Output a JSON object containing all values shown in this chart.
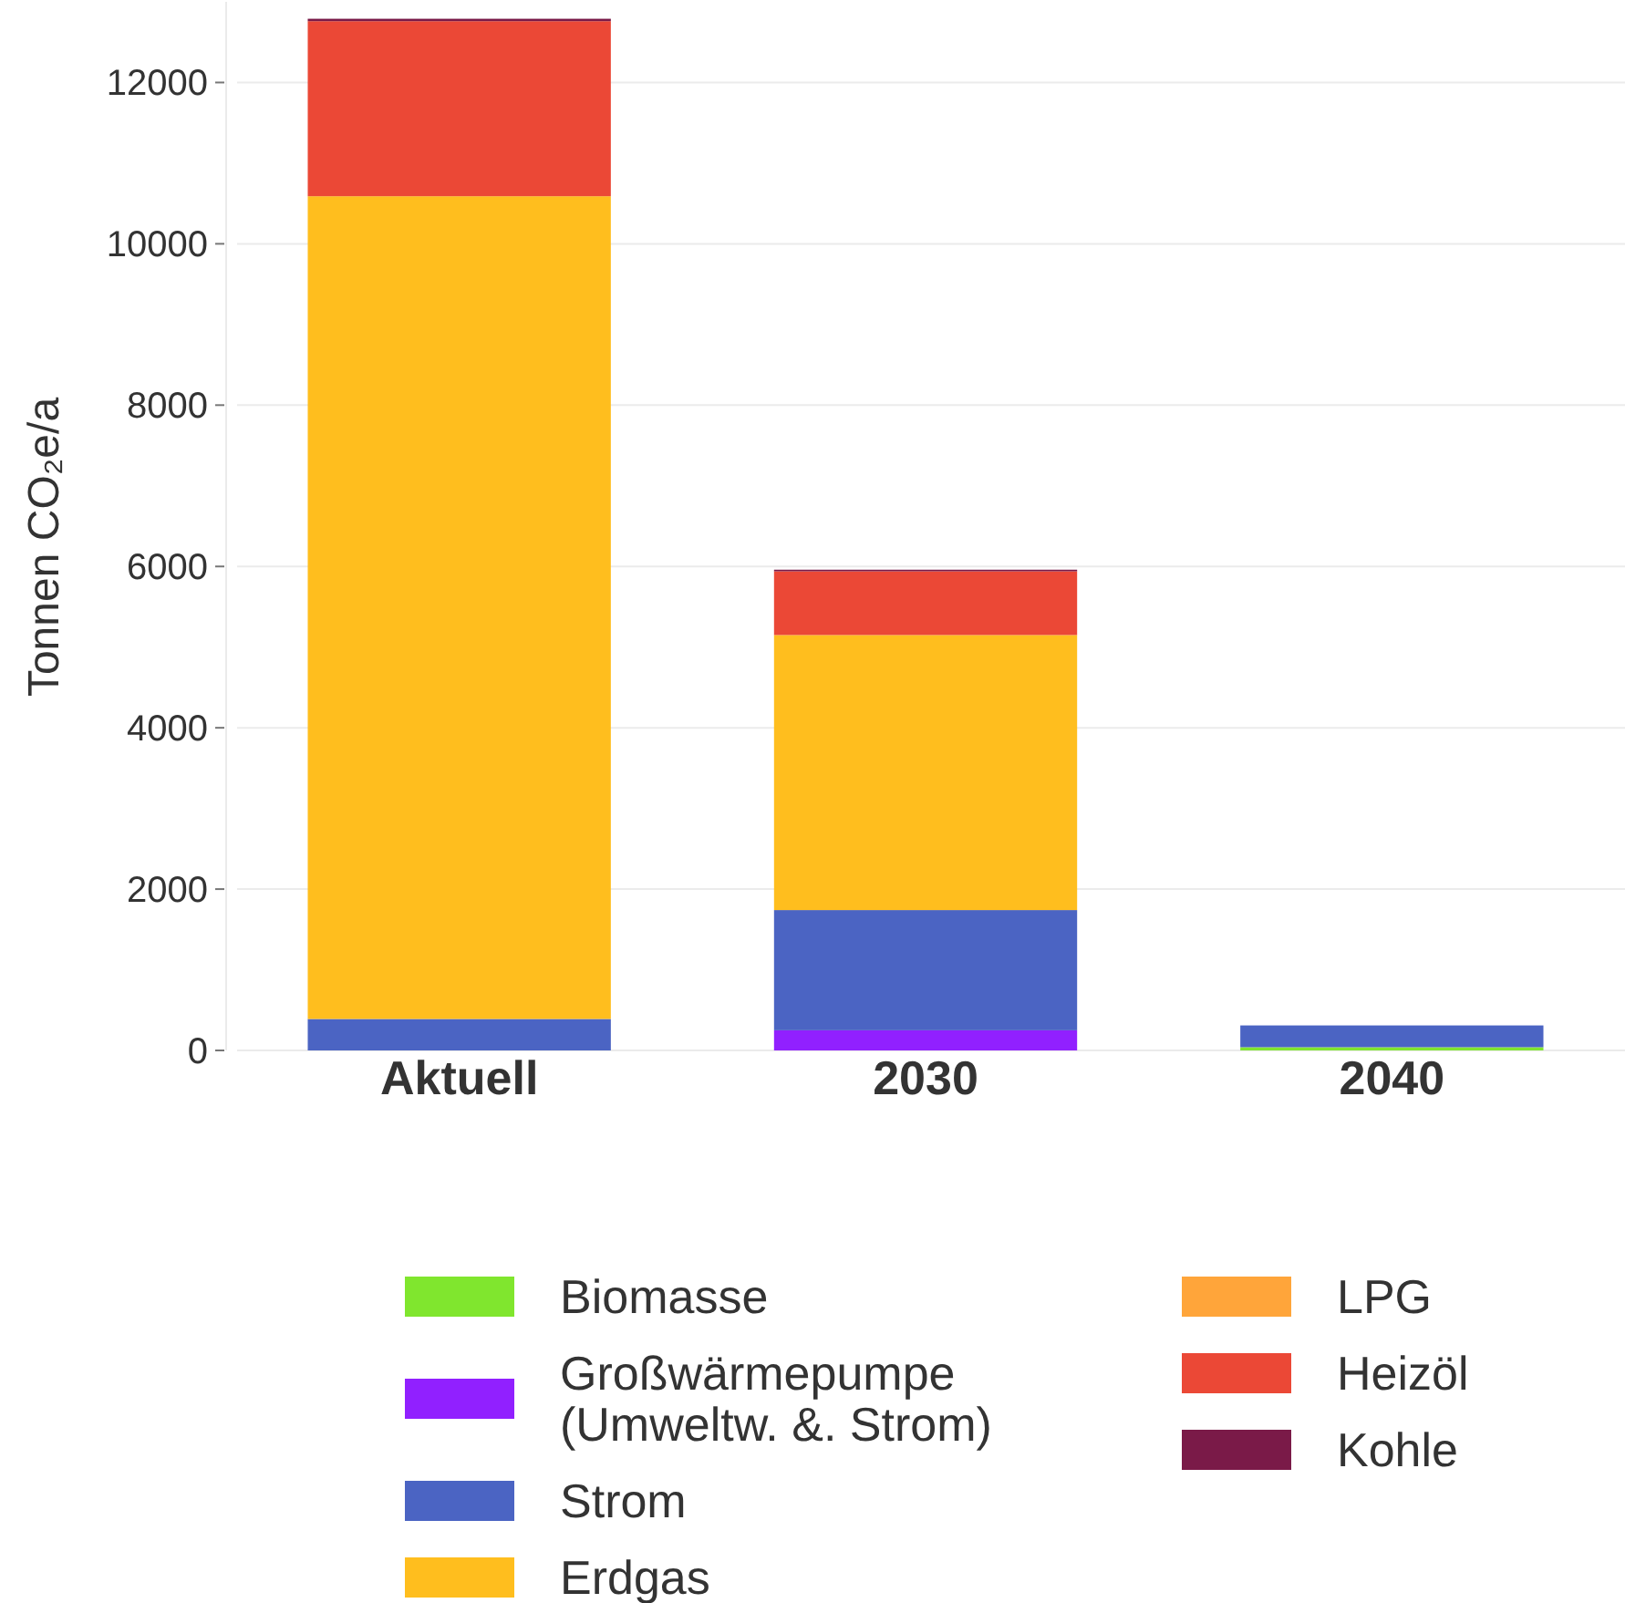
{
  "chart_data": {
    "type": "bar",
    "stacked": true,
    "ylabel": "Tonnen CO₂e/a",
    "categories": [
      "Aktuell",
      "2030",
      "2040"
    ],
    "series": [
      {
        "name": "Biomasse",
        "color": "#80e62e",
        "values": [
          0,
          0,
          40
        ]
      },
      {
        "name": "Großwärmepumpe (Umweltw. &. Strom)",
        "color": "#9120ff",
        "values": [
          0,
          250,
          0
        ]
      },
      {
        "name": "Strom",
        "color": "#4b64c3",
        "values": [
          390,
          1490,
          270
        ]
      },
      {
        "name": "Erdgas",
        "color": "#ffbe1e",
        "values": [
          10200,
          3410,
          0
        ]
      },
      {
        "name": "LPG",
        "color": "#ffa53a",
        "values": [
          0,
          0,
          0
        ]
      },
      {
        "name": "Heizöl",
        "color": "#eb4836",
        "values": [
          2170,
          790,
          0
        ]
      },
      {
        "name": "Kohle",
        "color": "#7a1a48",
        "values": [
          30,
          20,
          0
        ]
      }
    ],
    "ylim": [
      0,
      13000
    ],
    "yticks": [
      0,
      2000,
      4000,
      6000,
      8000,
      10000,
      12000
    ],
    "grid": "y",
    "legend": "bottom"
  }
}
